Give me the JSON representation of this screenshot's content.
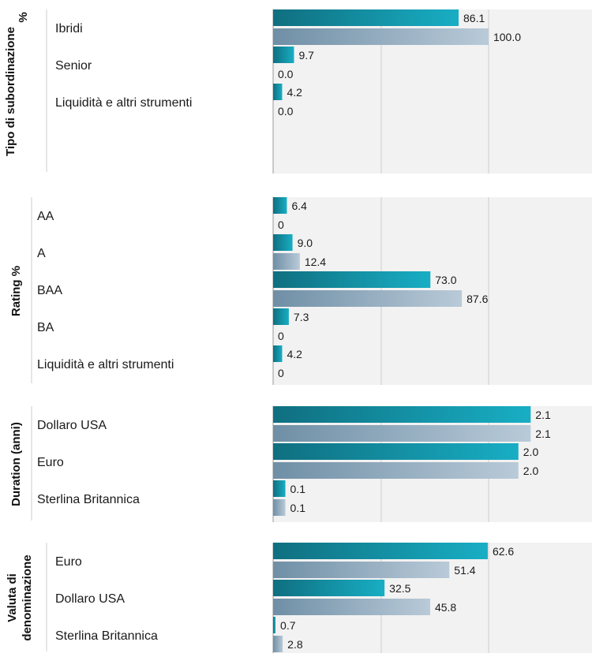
{
  "chart_data": [
    {
      "type": "bar",
      "title": "Tipo di subordinazione %",
      "title_lines": [
        "Tipo di subordinazione",
        "%"
      ],
      "categories": [
        "Ibridi",
        "Senior",
        "Liquidità e altri strumenti"
      ],
      "series": [
        {
          "values": [
            86.1,
            9.7,
            4.2
          ],
          "labels": [
            "86.1",
            "9.7",
            "4.2"
          ]
        },
        {
          "values": [
            100.0,
            0.0,
            0.0
          ],
          "labels": [
            "100.0",
            "0.0",
            "0.0"
          ]
        }
      ],
      "xlim": [
        0,
        148
      ],
      "grid": true
    },
    {
      "type": "bar",
      "title": "Rating %",
      "title_lines": [
        "Rating %"
      ],
      "categories": [
        "AA",
        "A",
        "BAA",
        "BA",
        "Liquidità e altri strumenti"
      ],
      "series": [
        {
          "values": [
            6.4,
            9.0,
            73.0,
            7.3,
            4.2
          ],
          "labels": [
            "6.4",
            "9.0",
            "73.0",
            "7.3",
            "4.2"
          ]
        },
        {
          "values": [
            0,
            12.4,
            87.6,
            0,
            0
          ],
          "labels": [
            "0",
            "12.4",
            "87.6",
            "0",
            "0"
          ]
        }
      ],
      "xlim": [
        0,
        148
      ],
      "grid": true
    },
    {
      "type": "bar",
      "title": "Duration (anni)",
      "title_lines": [
        "Duration (anni)"
      ],
      "categories": [
        "Dollaro USA",
        "Euro",
        "Sterlina Britannica"
      ],
      "series": [
        {
          "values": [
            2.1,
            2.0,
            0.1
          ],
          "labels": [
            "2.1",
            "2.0",
            "0.1"
          ]
        },
        {
          "values": [
            2.1,
            2.0,
            0.1
          ],
          "labels": [
            "2.1",
            "2.0",
            "0.1"
          ]
        }
      ],
      "xlim": [
        0,
        2.6
      ],
      "grid": true
    },
    {
      "type": "bar",
      "title": "Valuta di denominazione",
      "title_lines": [
        "Valuta di",
        "denominazione"
      ],
      "categories": [
        "Euro",
        "Dollaro USA",
        "Sterlina Britannica"
      ],
      "series": [
        {
          "values": [
            62.6,
            32.5,
            0.7
          ],
          "labels": [
            "62.6",
            "32.5",
            "0.7"
          ]
        },
        {
          "values": [
            51.4,
            45.8,
            2.8
          ],
          "labels": [
            "51.4",
            "45.8",
            "2.8"
          ]
        }
      ],
      "xlim": [
        0,
        93
      ],
      "grid": true
    }
  ],
  "colors": {
    "series_1_start": "#0f6f80",
    "series_1_end": "#18aec4",
    "series_2_start": "#6f8fa6",
    "series_2_end": "#b9cad8",
    "plot_background": "#f2f2f2",
    "grid": "#cfcfcf",
    "axis": "#9a9a9a"
  }
}
